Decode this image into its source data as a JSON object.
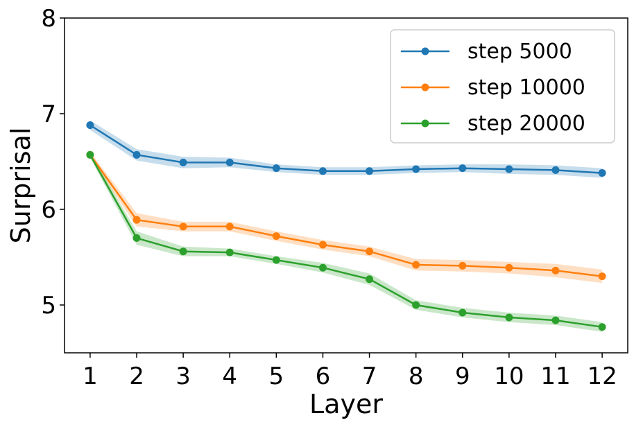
{
  "chart_data": {
    "type": "line",
    "title": "",
    "xlabel": "Layer",
    "ylabel": "Surprisal",
    "x": [
      1,
      2,
      3,
      4,
      5,
      6,
      7,
      8,
      9,
      10,
      11,
      12
    ],
    "xticks": [
      "1",
      "2",
      "3",
      "4",
      "5",
      "6",
      "7",
      "8",
      "9",
      "10",
      "11",
      "12"
    ],
    "xlim": [
      0.45,
      12.55
    ],
    "ylim": [
      4.5,
      8.0
    ],
    "yticks": [
      "5",
      "6",
      "7",
      "8"
    ],
    "grid": false,
    "legend_position": "top-right",
    "series": [
      {
        "name": "step 5000",
        "color": "#1f77b4",
        "values": [
          6.88,
          6.57,
          6.49,
          6.49,
          6.43,
          6.4,
          6.4,
          6.42,
          6.43,
          6.42,
          6.41,
          6.38
        ],
        "band": [
          0.05,
          0.06,
          0.06,
          0.05,
          0.04,
          0.04,
          0.04,
          0.04,
          0.04,
          0.05,
          0.05,
          0.05
        ]
      },
      {
        "name": "step 10000",
        "color": "#ff7f0e",
        "values": [
          6.57,
          5.89,
          5.82,
          5.82,
          5.72,
          5.63,
          5.56,
          5.42,
          5.41,
          5.39,
          5.36,
          5.3
        ],
        "band": [
          0.03,
          0.07,
          0.05,
          0.05,
          0.05,
          0.05,
          0.05,
          0.06,
          0.06,
          0.06,
          0.07,
          0.07
        ]
      },
      {
        "name": "step 20000",
        "color": "#2ca02c",
        "values": [
          6.57,
          5.7,
          5.56,
          5.55,
          5.47,
          5.39,
          5.27,
          5.0,
          4.92,
          4.87,
          4.84,
          4.77
        ],
        "band": [
          0.03,
          0.07,
          0.05,
          0.04,
          0.04,
          0.05,
          0.06,
          0.05,
          0.05,
          0.05,
          0.05,
          0.05
        ]
      }
    ]
  }
}
